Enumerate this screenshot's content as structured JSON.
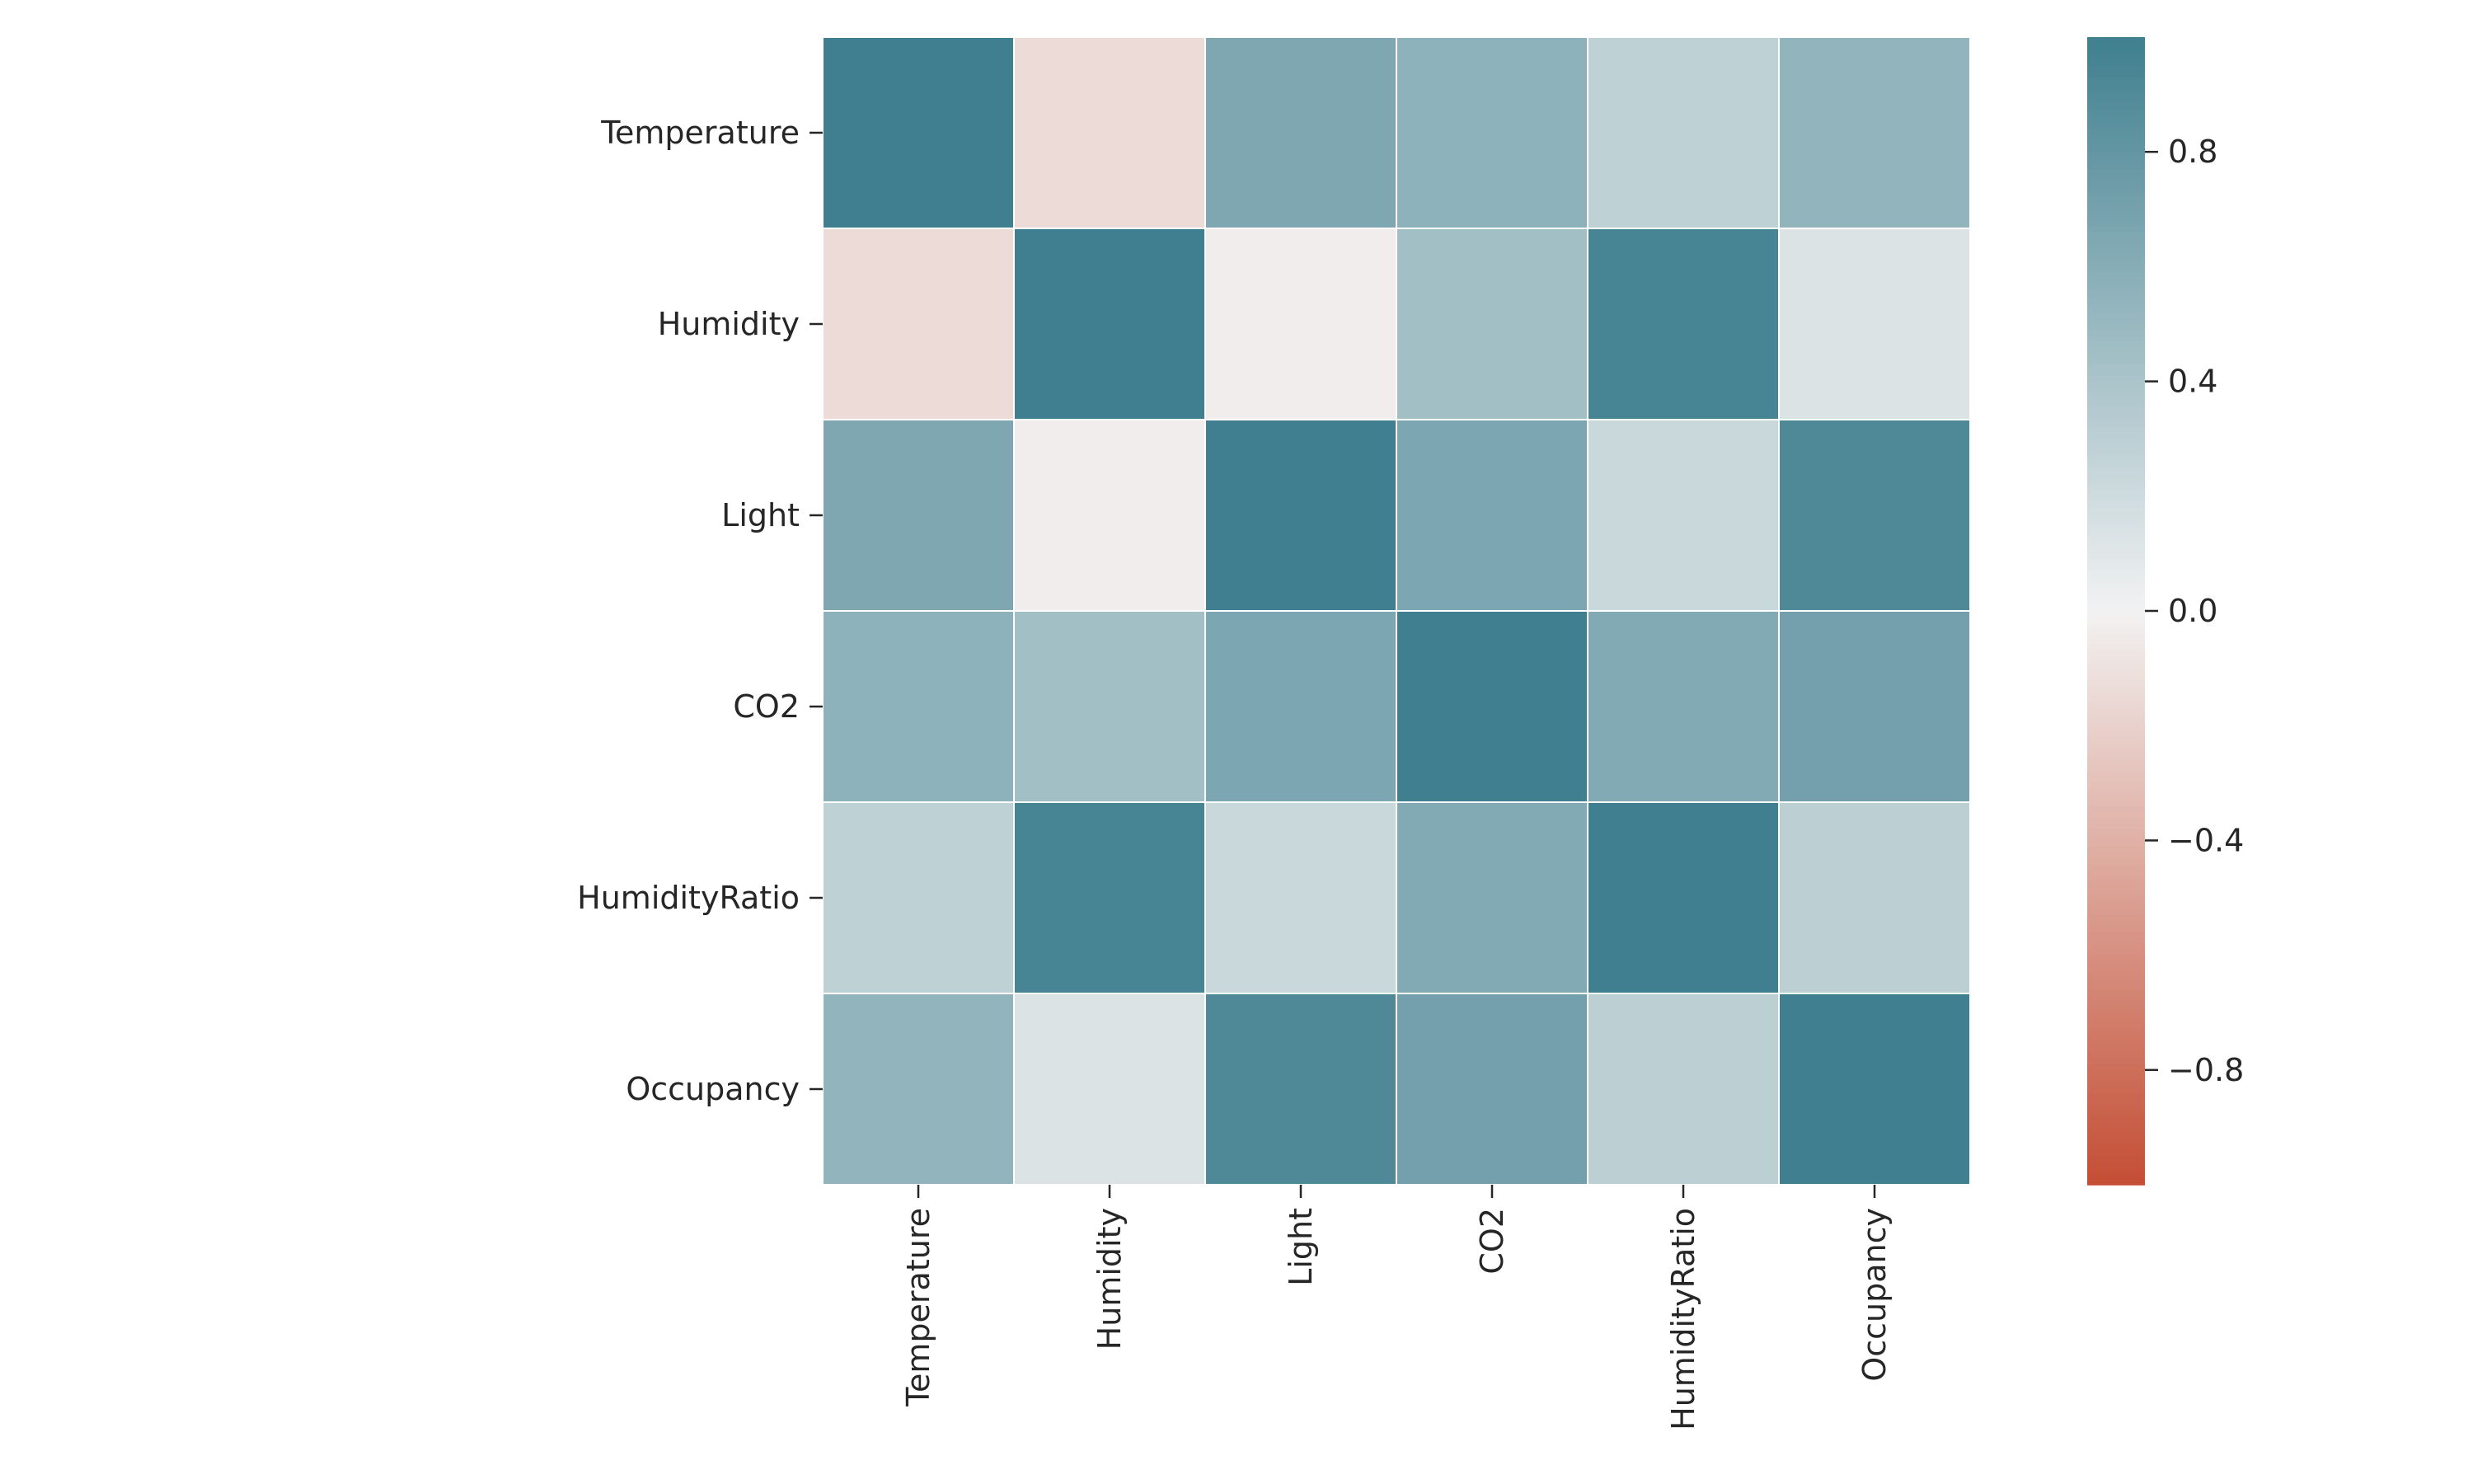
{
  "chart_data": {
    "type": "heatmap",
    "title": "",
    "xlabel": "",
    "ylabel": "",
    "rows": [
      "Temperature",
      "Humidity",
      "Light",
      "CO2",
      "HumidityRatio",
      "Occupancy"
    ],
    "columns": [
      "Temperature",
      "Humidity",
      "Light",
      "CO2",
      "HumidityRatio",
      "Occupancy"
    ],
    "values": [
      [
        1.0,
        -0.14,
        0.65,
        0.56,
        0.29,
        0.54
      ],
      [
        -0.14,
        1.0,
        -0.03,
        0.44,
        0.95,
        0.13
      ],
      [
        0.65,
        -0.03,
        1.0,
        0.66,
        0.23,
        0.91
      ],
      [
        0.56,
        0.44,
        0.66,
        1.0,
        0.63,
        0.71
      ],
      [
        0.29,
        0.95,
        0.23,
        0.63,
        1.0,
        0.3
      ],
      [
        0.54,
        0.13,
        0.91,
        0.71,
        0.3,
        1.0
      ]
    ],
    "colorbar": {
      "vmin": -1.0,
      "vmax": 1.0,
      "ticks": [
        0.8,
        0.4,
        0.0,
        -0.4,
        -0.8
      ],
      "tick_labels": [
        "0.8",
        "0.4",
        "0.0",
        "−0.4",
        "−0.8"
      ],
      "colors": {
        "negative": "#c44e34",
        "center": "#f2f2f2",
        "positive": "#3f7f8f"
      }
    },
    "grid": false,
    "legend": "colorbar-right"
  }
}
